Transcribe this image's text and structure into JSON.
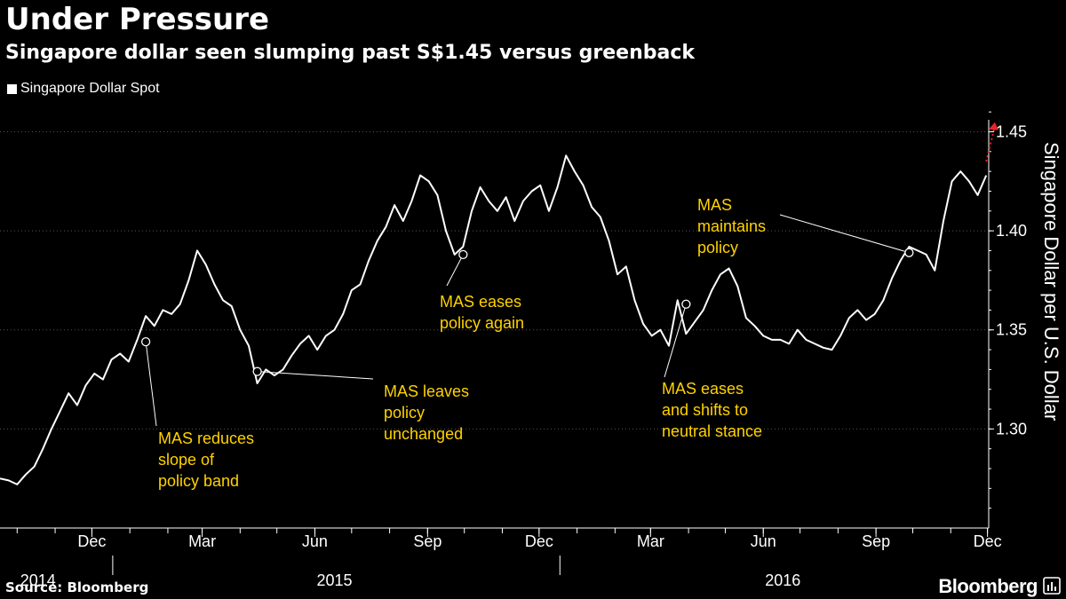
{
  "header": {
    "title": "Under Pressure",
    "subtitle": "Singapore dollar seen slumping past S$1.45 versus greenback"
  },
  "footer": {
    "source": "Source: Bloomberg",
    "brand": "Bloomberg"
  },
  "colors": {
    "background": "#000000",
    "line": "#ffffff",
    "annotation": "#ffd200",
    "forecast_arrow": "#e8242b",
    "grid": "#555555"
  },
  "chart_data": {
    "type": "line",
    "title": "Under Pressure",
    "subtitle": "Singapore dollar seen slumping past S$1.45 versus greenback",
    "ylabel": "Singapore Dollar per U.S. Dollar",
    "ylim": [
      1.25,
      1.465
    ],
    "y_ticks": [
      "1.30",
      "1.35",
      "1.40",
      "1.45"
    ],
    "y_tick_values": [
      1.3,
      1.35,
      1.4,
      1.45
    ],
    "x_range": [
      "2014-10-01",
      "2016-12-16"
    ],
    "x_ticks": [
      {
        "label": "Dec",
        "date": "2014-12-15"
      },
      {
        "label": "Mar",
        "date": "2015-03-15"
      },
      {
        "label": "Jun",
        "date": "2015-06-15"
      },
      {
        "label": "Sep",
        "date": "2015-09-15"
      },
      {
        "label": "Dec",
        "date": "2015-12-15"
      },
      {
        "label": "Mar",
        "date": "2016-03-15"
      },
      {
        "label": "Jun",
        "date": "2016-06-15"
      },
      {
        "label": "Sep",
        "date": "2016-09-15"
      },
      {
        "label": "Dec",
        "date": "2016-12-15"
      }
    ],
    "year_labels": [
      {
        "label": "2014",
        "date": "2014-11-01"
      },
      {
        "label": "2015",
        "date": "2015-07-01"
      },
      {
        "label": "2016",
        "date": "2016-07-01"
      }
    ],
    "year_separators": [
      "2015-01-01",
      "2016-01-01"
    ],
    "grid": "horizontal dotted",
    "legend_position": "top-left",
    "series": [
      {
        "name": "Singapore Dollar Spot",
        "x": [
          "2014-10-01",
          "2014-10-08",
          "2014-10-15",
          "2014-10-22",
          "2014-10-29",
          "2014-11-05",
          "2014-11-12",
          "2014-11-19",
          "2014-11-26",
          "2014-12-03",
          "2014-12-10",
          "2014-12-17",
          "2014-12-24",
          "2014-12-31",
          "2015-01-07",
          "2015-01-14",
          "2015-01-21",
          "2015-01-28",
          "2015-02-04",
          "2015-02-11",
          "2015-02-18",
          "2015-02-25",
          "2015-03-04",
          "2015-03-11",
          "2015-03-18",
          "2015-03-25",
          "2015-04-01",
          "2015-04-08",
          "2015-04-15",
          "2015-04-22",
          "2015-04-29",
          "2015-05-06",
          "2015-05-13",
          "2015-05-20",
          "2015-05-27",
          "2015-06-03",
          "2015-06-10",
          "2015-06-17",
          "2015-06-24",
          "2015-07-01",
          "2015-07-08",
          "2015-07-15",
          "2015-07-22",
          "2015-07-29",
          "2015-08-05",
          "2015-08-12",
          "2015-08-19",
          "2015-08-26",
          "2015-09-02",
          "2015-09-09",
          "2015-09-16",
          "2015-09-23",
          "2015-09-30",
          "2015-10-07",
          "2015-10-14",
          "2015-10-21",
          "2015-10-28",
          "2015-11-04",
          "2015-11-11",
          "2015-11-18",
          "2015-11-25",
          "2015-12-02",
          "2015-12-09",
          "2015-12-16",
          "2015-12-23",
          "2015-12-30",
          "2016-01-06",
          "2016-01-13",
          "2016-01-20",
          "2016-01-27",
          "2016-02-03",
          "2016-02-10",
          "2016-02-17",
          "2016-02-24",
          "2016-03-02",
          "2016-03-09",
          "2016-03-16",
          "2016-03-23",
          "2016-03-30",
          "2016-04-06",
          "2016-04-13",
          "2016-04-20",
          "2016-04-27",
          "2016-05-04",
          "2016-05-11",
          "2016-05-18",
          "2016-05-25",
          "2016-06-01",
          "2016-06-08",
          "2016-06-15",
          "2016-06-22",
          "2016-06-29",
          "2016-07-06",
          "2016-07-13",
          "2016-07-20",
          "2016-07-27",
          "2016-08-03",
          "2016-08-10",
          "2016-08-17",
          "2016-08-24",
          "2016-08-31",
          "2016-09-07",
          "2016-09-14",
          "2016-09-21",
          "2016-09-28",
          "2016-10-05",
          "2016-10-12",
          "2016-10-19",
          "2016-10-26",
          "2016-11-02",
          "2016-11-09",
          "2016-11-16",
          "2016-11-23",
          "2016-11-30",
          "2016-12-07",
          "2016-12-14"
        ],
        "values": [
          1.275,
          1.274,
          1.272,
          1.277,
          1.281,
          1.29,
          1.3,
          1.309,
          1.318,
          1.312,
          1.322,
          1.328,
          1.325,
          1.335,
          1.338,
          1.334,
          1.345,
          1.357,
          1.352,
          1.36,
          1.358,
          1.363,
          1.375,
          1.39,
          1.383,
          1.373,
          1.365,
          1.362,
          1.35,
          1.342,
          1.323,
          1.33,
          1.327,
          1.33,
          1.337,
          1.343,
          1.347,
          1.34,
          1.347,
          1.35,
          1.358,
          1.37,
          1.373,
          1.385,
          1.395,
          1.402,
          1.413,
          1.405,
          1.415,
          1.428,
          1.425,
          1.418,
          1.4,
          1.388,
          1.392,
          1.41,
          1.422,
          1.415,
          1.41,
          1.417,
          1.405,
          1.415,
          1.42,
          1.423,
          1.41,
          1.422,
          1.438,
          1.43,
          1.423,
          1.412,
          1.407,
          1.395,
          1.378,
          1.382,
          1.365,
          1.353,
          1.347,
          1.35,
          1.342,
          1.365,
          1.348,
          1.354,
          1.36,
          1.37,
          1.378,
          1.381,
          1.372,
          1.356,
          1.352,
          1.347,
          1.345,
          1.345,
          1.343,
          1.35,
          1.345,
          1.343,
          1.341,
          1.34,
          1.347,
          1.356,
          1.36,
          1.355,
          1.358,
          1.365,
          1.376,
          1.385,
          1.392,
          1.39,
          1.388,
          1.38,
          1.405,
          1.425,
          1.43,
          1.425,
          1.418,
          1.428
        ]
      }
    ],
    "forecast": {
      "from_date": "2016-12-14",
      "from_value": 1.435,
      "to_date": "2016-12-21",
      "to_value": 1.453
    },
    "annotations": [
      {
        "lines": [
          "MAS reduces",
          "slope of",
          "policy band"
        ],
        "marker_date": "2015-01-28",
        "marker_value": 1.344
      },
      {
        "lines": [
          "MAS leaves",
          "policy",
          "unchanged"
        ],
        "marker_date": "2015-04-29",
        "marker_value": 1.329
      },
      {
        "lines": [
          "MAS eases",
          "policy again"
        ],
        "marker_date": "2015-10-14",
        "marker_value": 1.388
      },
      {
        "lines": [
          "MAS eases",
          "and shifts to",
          "neutral stance"
        ],
        "marker_date": "2016-04-13",
        "marker_value": 1.363
      },
      {
        "lines": [
          "MAS",
          "maintains",
          "policy"
        ],
        "marker_date": "2016-10-12",
        "marker_value": 1.389
      }
    ]
  }
}
